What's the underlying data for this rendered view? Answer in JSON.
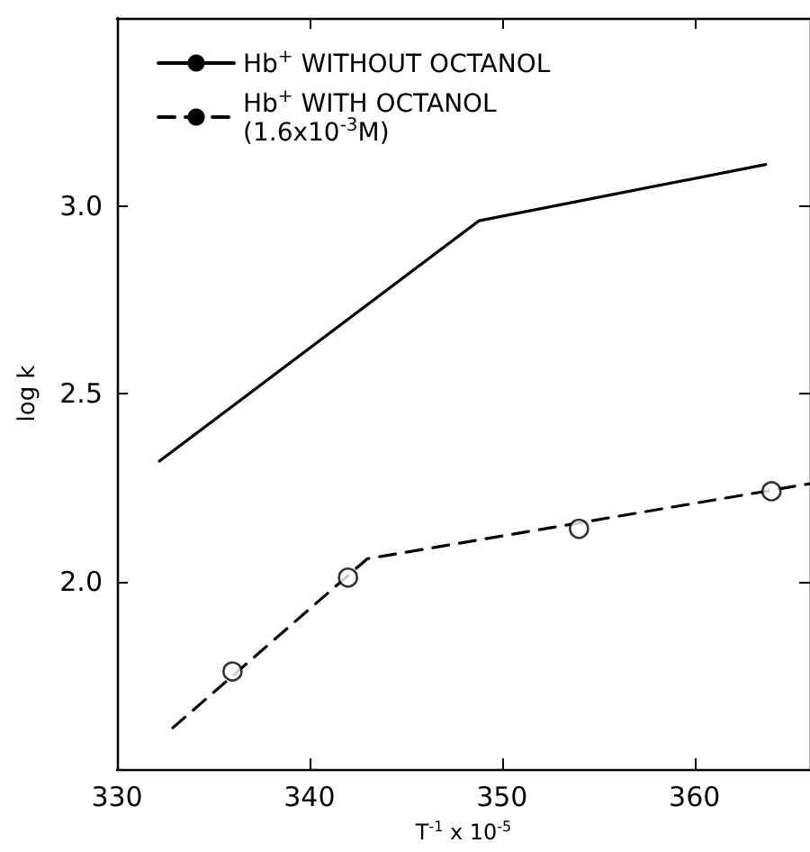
{
  "chart_data": {
    "type": "line",
    "xlabel": "T$^{-1}$ x 10$^{-5}$",
    "ylabel": "log k",
    "xlim": [
      330,
      366
    ],
    "xticks": [
      330,
      340,
      350,
      360
    ],
    "ylim": [
      1.5,
      3.5
    ],
    "yticks": [
      {
        "value": 2,
        "label": "2.0"
      },
      {
        "value": 2.5,
        "label": "2.5"
      },
      {
        "value": 3,
        "label": "3.0"
      }
    ],
    "grid": false,
    "legend": "top left",
    "series": [
      {
        "name": "Hb$^{+}$ WITHOUT OCTANOL",
        "color": "#000000",
        "line_style": "solid",
        "marker": "none",
        "x": [
          332.2,
          348.8,
          363.7
        ],
        "values": [
          2.32,
          2.96,
          3.11
        ]
      },
      {
        "name": "Hb$^{+}$ WITH OCTANOL\n(1.6x10$^{-3}$M)",
        "color": "#000000",
        "line_style": "dashed",
        "marker": "none",
        "x": [
          332.9,
          343.0,
          366
        ],
        "values": [
          1.61,
          2.06,
          2.26
        ]
      },
      {
        "type": "scatter",
        "color": "#000000",
        "marker": "circle",
        "x": [
          336,
          342,
          354,
          364
        ],
        "values": [
          1.76,
          2.01,
          2.14,
          2.24
        ]
      }
    ]
  }
}
